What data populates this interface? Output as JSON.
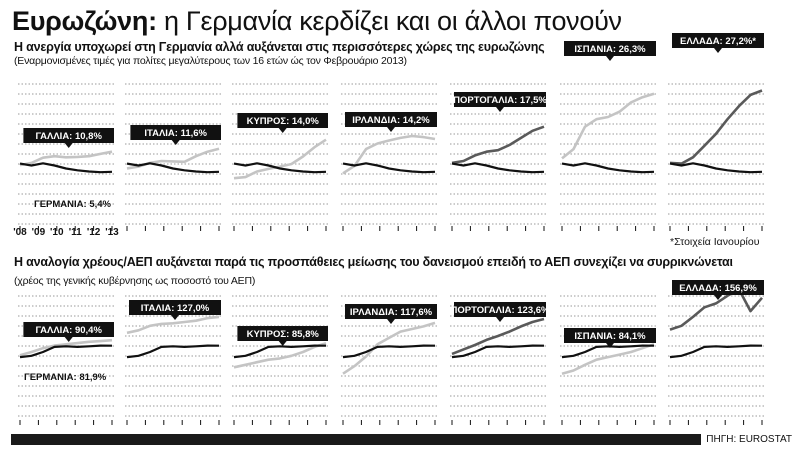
{
  "title": {
    "bold": "Ευρωζώνη:",
    "rest": "η Γερμανία κερδίζει και οι άλλοι πονούν"
  },
  "section1": {
    "subtitle": "Η ανεργία υποχωρεί στη Γερμανία αλλά αυξάνεται στις περισσότερες χώρες της ευρωζώνης",
    "note": "(Εναρμονισμένες τιμές για πολίτες μεγαλύτερους των 16 ετών ώς τον Φεβρουάριο 2013)"
  },
  "section2": {
    "subtitle": "Η αναλογία χρέους/ΑΕΠ αυξάνεται παρά τις προσπάθειες μείωσης του δανεισμού επειδή το ΑΕΠ συνεχίζει να συρρικνώνεται",
    "note": "(χρέος της γενικής κυβέρνησης ως ποσοστό του ΑΕΠ)"
  },
  "footnote": "*Στοιχεία Ιανουρίου",
  "source": "ΠΗΓΗ: EUROSTAT",
  "colors": {
    "germany": "#111111",
    "country_light": "#c4c4c4",
    "country_mid": "#8a8a8a",
    "country_dark": "#5a5a5a",
    "grid": "#9a9a9a",
    "label_bg": "#111111",
    "label_text": "#ffffff"
  },
  "chart_data": [
    {
      "type": "line",
      "group": "unemployment",
      "x": [
        "2008",
        "2009",
        "2010",
        "2011",
        "2012",
        "2013"
      ],
      "x_tick_labels": [
        "'08",
        "'09",
        "'10",
        "'11",
        "'12",
        "'13"
      ],
      "ylim": [
        0,
        30
      ],
      "grid": true,
      "panels": [
        {
          "label": "ΓΑΛΛΙΑ: 10,8%",
          "extra_label": "ΓΕΡΜΑΝΙΑ: 5,4%",
          "tone": "light",
          "country": [
            7.2,
            7.8,
            9.2,
            9.6,
            9.3,
            9.4,
            9.6,
            10.2,
            10.8
          ],
          "germany": [
            7.6,
            7.1,
            7.7,
            7.1,
            6.3,
            5.8,
            5.5,
            5.3,
            5.4
          ]
        },
        {
          "label": "ΙΤΑΛΙΑ: 11,6%",
          "tone": "light",
          "country": [
            6.3,
            6.8,
            7.8,
            8.3,
            8.2,
            8.1,
            9.6,
            10.8,
            11.6
          ],
          "germany": [
            7.6,
            7.1,
            7.7,
            7.1,
            6.3,
            5.8,
            5.5,
            5.3,
            5.4
          ]
        },
        {
          "label": "ΚΥΠΡΟΣ: 14,0%",
          "tone": "light",
          "country": [
            3.7,
            4.0,
            5.5,
            6.2,
            6.8,
            7.5,
            9.5,
            12.0,
            14.0
          ],
          "germany": [
            7.6,
            7.1,
            7.7,
            7.1,
            6.3,
            5.8,
            5.5,
            5.3,
            5.4
          ]
        },
        {
          "label": "ΙΡΛΑΝΔΙΑ: 14,2%",
          "tone": "light",
          "country": [
            5.0,
            7.0,
            11.5,
            13.0,
            13.8,
            14.5,
            15.0,
            14.7,
            14.2
          ],
          "germany": [
            7.6,
            7.1,
            7.7,
            7.1,
            6.3,
            5.8,
            5.5,
            5.3,
            5.4
          ]
        },
        {
          "label": "ΠΟΡΤΟΓΑΛΙΑ: 17,5%",
          "tone": "dark",
          "country": [
            7.8,
            8.3,
            9.8,
            10.8,
            11.2,
            12.6,
            14.5,
            16.4,
            17.5
          ],
          "germany": [
            7.6,
            7.1,
            7.7,
            7.1,
            6.3,
            5.8,
            5.5,
            5.3,
            5.4
          ]
        },
        {
          "label": "ΙΣΠΑΝΙΑ: 26,3%",
          "tone": "light",
          "country": [
            9.0,
            11.5,
            17.5,
            19.5,
            20.1,
            21.5,
            24.0,
            25.4,
            26.3
          ],
          "germany": [
            7.6,
            7.1,
            7.7,
            7.1,
            6.3,
            5.8,
            5.5,
            5.3,
            5.4
          ]
        },
        {
          "label": "ΕΛΛΑΔΑ: 27,2%*",
          "tone": "dark",
          "country": [
            7.8,
            7.6,
            9.3,
            12.4,
            15.6,
            19.5,
            23.0,
            26.0,
            27.2
          ],
          "germany": [
            7.6,
            7.1,
            7.7,
            7.1,
            6.3,
            5.8,
            5.5,
            5.3,
            5.4
          ]
        }
      ]
    },
    {
      "type": "line",
      "group": "debt_to_gdp",
      "x": [
        "2008",
        "2009",
        "2010",
        "2011",
        "2012",
        "2013"
      ],
      "ylim": [
        0,
        180
      ],
      "grid": true,
      "panels": [
        {
          "label": "ΓΑΛΛΙΑ: 90,4%",
          "extra_label": "ΓΕΡΜΑΝΙΑ: 81,9%",
          "tone": "light",
          "country": [
            67,
            72,
            78,
            82,
            84,
            86,
            88,
            89,
            90.4
          ],
          "germany": [
            64,
            66,
            72,
            80,
            81,
            80,
            81,
            82,
            81.9
          ]
        },
        {
          "label": "ΙΤΑΛΙΑ: 127,0%",
          "tone": "light",
          "country": [
            102,
            106,
            113,
            116,
            117,
            119,
            121,
            125,
            127.0
          ],
          "germany": [
            64,
            66,
            72,
            80,
            81,
            80,
            81,
            82,
            81.9
          ]
        },
        {
          "label": "ΚΥΠΡΟΣ: 85,8%",
          "tone": "light",
          "country": [
            48,
            52,
            56,
            60,
            62,
            66,
            72,
            80,
            85.8
          ],
          "germany": [
            64,
            66,
            72,
            80,
            81,
            80,
            81,
            82,
            81.9
          ]
        },
        {
          "label": "ΙΡΛΑΝΔΙΑ: 117,6%",
          "tone": "light",
          "country": [
            38,
            50,
            65,
            84,
            94,
            104,
            108,
            112,
            117.6
          ],
          "germany": [
            64,
            66,
            72,
            80,
            81,
            80,
            81,
            82,
            81.9
          ]
        },
        {
          "label": "ΠΟΡΤΟΓΑΛΙΑ: 123,6%",
          "tone": "dark",
          "country": [
            69,
            76,
            83,
            91,
            97,
            104,
            112,
            119,
            123.6
          ],
          "germany": [
            64,
            66,
            72,
            80,
            81,
            80,
            81,
            82,
            81.9
          ]
        },
        {
          "label": "ΙΣΠΑΝΙΑ: 84,1%",
          "tone": "light",
          "country": [
            38,
            43,
            52,
            60,
            64,
            68,
            72,
            78,
            84.1
          ],
          "germany": [
            64,
            66,
            72,
            80,
            81,
            80,
            81,
            82,
            81.9
          ]
        },
        {
          "label": "ΕΛΛΑΔΑ: 156,9%",
          "tone": "dark",
          "country": [
            107,
            113,
            127,
            142,
            148,
            160,
            170,
            136,
            156.9
          ],
          "germany": [
            64,
            66,
            72,
            80,
            81,
            80,
            81,
            82,
            81.9
          ]
        }
      ]
    }
  ]
}
